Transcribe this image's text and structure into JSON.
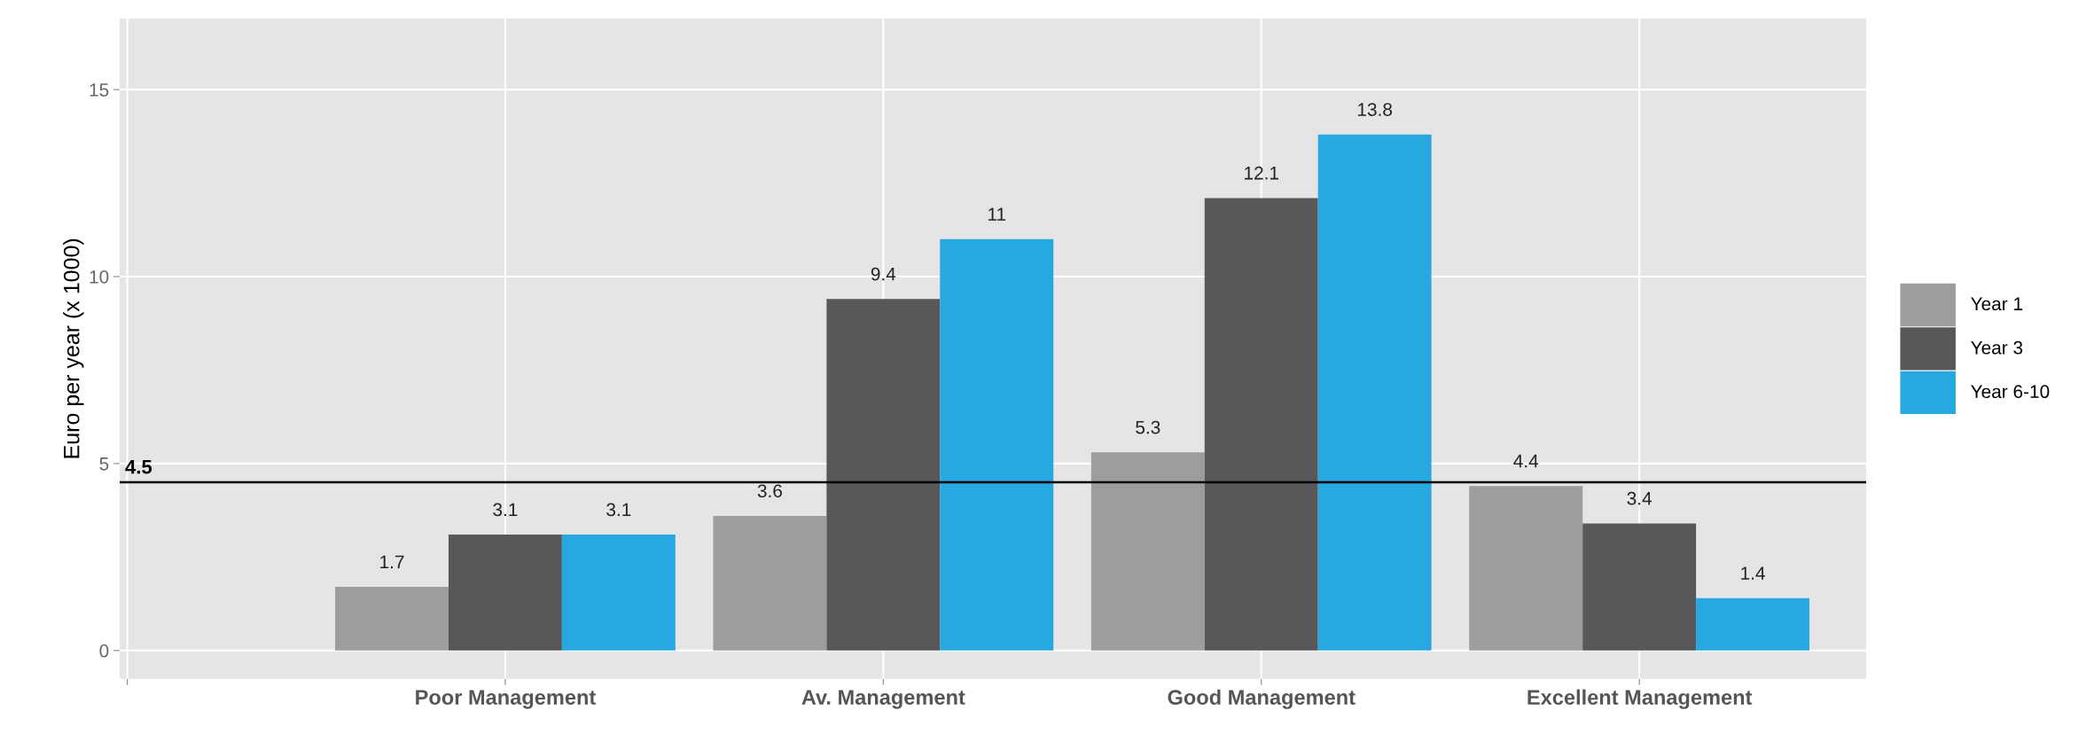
{
  "chart_data": {
    "type": "bar",
    "ylabel": "Euro per year (x 1000)",
    "categories": [
      null,
      "Poor Management",
      "Av. Management",
      "Good Management",
      "Excellent Management"
    ],
    "series": [
      {
        "name": "Year 1",
        "color": "#9d9d9f",
        "values": [
          null,
          1.7,
          3.6,
          5.3,
          4.4
        ]
      },
      {
        "name": "Year 3",
        "color": "#58585a",
        "values": [
          null,
          3.1,
          9.4,
          12.1,
          3.4
        ]
      },
      {
        "name": "Year 6-10",
        "color": "#27a8e0",
        "values": [
          null,
          3.1,
          11,
          13.8,
          1.4
        ]
      }
    ],
    "ylim": [
      -0.76,
      16.9
    ],
    "yticks": [
      0,
      5,
      10,
      15
    ],
    "grid": true,
    "legend": "right",
    "data_labels": true,
    "ref_lines": [
      {
        "axis": "y",
        "value": 4.5,
        "label": "4.5",
        "color": "#000000"
      }
    ]
  }
}
